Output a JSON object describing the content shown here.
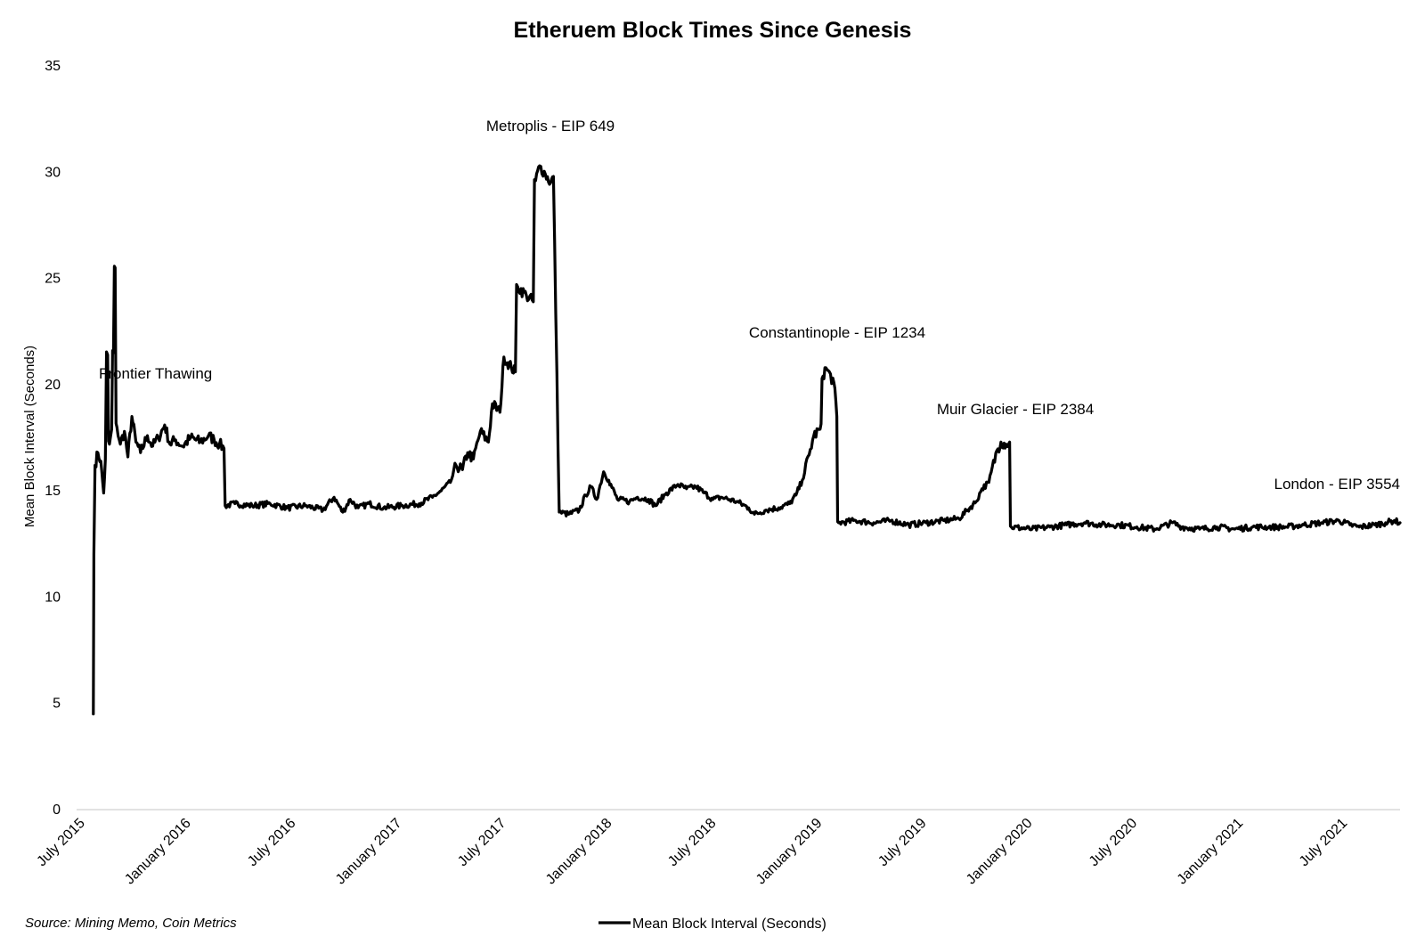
{
  "chart_data": {
    "type": "line",
    "title": "Etheruem Block Times Since Genesis",
    "ylabel": "Mean Block Interval (Seconds)",
    "xlabel": "",
    "ylim": [
      0,
      35
    ],
    "y_ticks": [
      0,
      5,
      10,
      15,
      20,
      25,
      30,
      35
    ],
    "x_range": [
      "2015-07-30",
      "2021-10-15"
    ],
    "x_ticks": [
      {
        "date": "2015-07-01",
        "label": "July 2015"
      },
      {
        "date": "2016-01-01",
        "label": "January 2016"
      },
      {
        "date": "2016-07-01",
        "label": "July 2016"
      },
      {
        "date": "2017-01-01",
        "label": "January 2017"
      },
      {
        "date": "2017-07-01",
        "label": "July 2017"
      },
      {
        "date": "2018-01-01",
        "label": "January 2018"
      },
      {
        "date": "2018-07-01",
        "label": "July 2018"
      },
      {
        "date": "2019-01-01",
        "label": "January 2019"
      },
      {
        "date": "2019-07-01",
        "label": "July 2019"
      },
      {
        "date": "2020-01-01",
        "label": "January 2020"
      },
      {
        "date": "2020-07-01",
        "label": "July 2020"
      },
      {
        "date": "2021-01-01",
        "label": "January 2021"
      },
      {
        "date": "2021-07-01",
        "label": "July 2021"
      }
    ],
    "grid": false,
    "legend_position": "bottom-center",
    "source": "Source: Mining Memo, Coin Metrics",
    "line_color": "#000000",
    "series": [
      {
        "name": "Mean Block Interval (Seconds)",
        "points": [
          [
            "2015-07-30",
            4.5
          ],
          [
            "2015-07-31",
            12.0
          ],
          [
            "2015-08-02",
            16.2
          ],
          [
            "2015-08-07",
            16.8
          ],
          [
            "2015-08-12",
            16.4
          ],
          [
            "2015-08-17",
            14.9
          ],
          [
            "2015-08-20",
            16.5
          ],
          [
            "2015-08-24",
            21.4
          ],
          [
            "2015-08-27",
            17.2
          ],
          [
            "2015-08-31",
            17.9
          ],
          [
            "2015-09-03",
            21.5
          ],
          [
            "2015-09-06",
            25.5
          ],
          [
            "2015-09-09",
            18.0
          ],
          [
            "2015-09-15",
            17.2
          ],
          [
            "2015-09-22",
            17.8
          ],
          [
            "2015-09-28",
            16.6
          ],
          [
            "2015-10-05",
            18.5
          ],
          [
            "2015-10-12",
            17.3
          ],
          [
            "2015-10-20",
            16.8
          ],
          [
            "2015-11-01",
            17.6
          ],
          [
            "2015-11-10",
            17.1
          ],
          [
            "2015-11-20",
            17.5
          ],
          [
            "2015-12-01",
            18.1
          ],
          [
            "2015-12-10",
            17.2
          ],
          [
            "2015-12-20",
            17.4
          ],
          [
            "2016-01-01",
            17.1
          ],
          [
            "2016-01-15",
            17.5
          ],
          [
            "2016-02-01",
            17.3
          ],
          [
            "2016-02-15",
            17.6
          ],
          [
            "2016-02-25",
            17.4
          ],
          [
            "2016-03-05",
            17.2
          ],
          [
            "2016-03-13",
            17.0
          ],
          [
            "2016-03-15",
            14.3
          ],
          [
            "2016-04-01",
            14.4
          ],
          [
            "2016-05-01",
            14.3
          ],
          [
            "2016-06-01",
            14.4
          ],
          [
            "2016-07-01",
            14.2
          ],
          [
            "2016-08-01",
            14.3
          ],
          [
            "2016-09-01",
            14.1
          ],
          [
            "2016-09-20",
            14.7
          ],
          [
            "2016-10-05",
            14.0
          ],
          [
            "2016-10-18",
            14.6
          ],
          [
            "2016-11-01",
            14.2
          ],
          [
            "2016-11-20",
            14.4
          ],
          [
            "2016-12-15",
            14.2
          ],
          [
            "2017-01-15",
            14.3
          ],
          [
            "2017-02-15",
            14.4
          ],
          [
            "2017-03-10",
            14.7
          ],
          [
            "2017-03-25",
            15.0
          ],
          [
            "2017-04-10",
            15.4
          ],
          [
            "2017-04-20",
            16.2
          ],
          [
            "2017-05-01",
            16.0
          ],
          [
            "2017-05-10",
            16.8
          ],
          [
            "2017-05-20",
            16.5
          ],
          [
            "2017-06-01",
            17.8
          ],
          [
            "2017-06-15",
            17.3
          ],
          [
            "2017-06-22",
            19.1
          ],
          [
            "2017-07-05",
            18.7
          ],
          [
            "2017-07-12",
            21.3
          ],
          [
            "2017-07-25",
            20.8
          ],
          [
            "2017-08-01",
            20.6
          ],
          [
            "2017-08-05",
            24.6
          ],
          [
            "2017-08-20",
            24.2
          ],
          [
            "2017-09-01",
            23.9
          ],
          [
            "2017-09-05",
            29.6
          ],
          [
            "2017-09-12",
            30.3
          ],
          [
            "2017-09-22",
            29.9
          ],
          [
            "2017-10-01",
            29.5
          ],
          [
            "2017-10-06",
            29.8
          ],
          [
            "2017-10-16",
            14.0
          ],
          [
            "2017-11-01",
            13.9
          ],
          [
            "2017-11-20",
            14.1
          ],
          [
            "2017-12-01",
            14.8
          ],
          [
            "2017-12-10",
            15.2
          ],
          [
            "2017-12-20",
            14.6
          ],
          [
            "2018-01-01",
            15.9
          ],
          [
            "2018-01-10",
            15.5
          ],
          [
            "2018-01-25",
            14.6
          ],
          [
            "2018-02-15",
            14.5
          ],
          [
            "2018-03-01",
            14.7
          ],
          [
            "2018-03-20",
            14.6
          ],
          [
            "2018-04-01",
            14.3
          ],
          [
            "2018-04-20",
            14.9
          ],
          [
            "2018-05-10",
            15.3
          ],
          [
            "2018-05-25",
            15.1
          ],
          [
            "2018-06-10",
            15.2
          ],
          [
            "2018-06-25",
            14.9
          ],
          [
            "2018-07-10",
            14.6
          ],
          [
            "2018-07-25",
            14.7
          ],
          [
            "2018-08-20",
            14.5
          ],
          [
            "2018-09-10",
            14.2
          ],
          [
            "2018-09-20",
            13.9
          ],
          [
            "2018-10-10",
            14.1
          ],
          [
            "2018-11-01",
            14.2
          ],
          [
            "2018-11-20",
            14.4
          ],
          [
            "2018-12-01",
            14.8
          ],
          [
            "2018-12-12",
            15.5
          ],
          [
            "2018-12-24",
            16.7
          ],
          [
            "2019-01-01",
            17.6
          ],
          [
            "2019-01-12",
            17.9
          ],
          [
            "2019-01-17",
            20.4
          ],
          [
            "2019-01-22",
            20.8
          ],
          [
            "2019-02-05",
            20.1
          ],
          [
            "2019-02-10",
            18.5
          ],
          [
            "2019-02-13",
            13.5
          ],
          [
            "2019-03-15",
            13.6
          ],
          [
            "2019-04-15",
            13.5
          ],
          [
            "2019-05-15",
            13.6
          ],
          [
            "2019-06-15",
            13.4
          ],
          [
            "2019-07-15",
            13.5
          ],
          [
            "2019-08-15",
            13.6
          ],
          [
            "2019-09-10",
            13.7
          ],
          [
            "2019-09-25",
            14.1
          ],
          [
            "2019-10-10",
            14.5
          ],
          [
            "2019-10-20",
            15.1
          ],
          [
            "2019-11-01",
            15.4
          ],
          [
            "2019-11-15",
            16.9
          ],
          [
            "2019-11-22",
            17.3
          ],
          [
            "2019-12-01",
            17.2
          ],
          [
            "2019-12-07",
            17.3
          ],
          [
            "2019-12-10",
            13.3
          ],
          [
            "2020-01-15",
            13.2
          ],
          [
            "2020-02-15",
            13.3
          ],
          [
            "2020-03-15",
            13.4
          ],
          [
            "2020-04-15",
            13.5
          ],
          [
            "2020-05-15",
            13.4
          ],
          [
            "2020-06-15",
            13.4
          ],
          [
            "2020-07-15",
            13.3
          ],
          [
            "2020-08-15",
            13.2
          ],
          [
            "2020-09-15",
            13.5
          ],
          [
            "2020-10-01",
            13.3
          ],
          [
            "2020-11-01",
            13.2
          ],
          [
            "2020-12-01",
            13.3
          ],
          [
            "2021-01-01",
            13.2
          ],
          [
            "2021-02-01",
            13.3
          ],
          [
            "2021-03-01",
            13.3
          ],
          [
            "2021-04-01",
            13.3
          ],
          [
            "2021-05-01",
            13.4
          ],
          [
            "2021-06-01",
            13.5
          ],
          [
            "2021-07-01",
            13.6
          ],
          [
            "2021-07-20",
            13.4
          ],
          [
            "2021-08-05",
            13.3
          ],
          [
            "2021-09-01",
            13.4
          ],
          [
            "2021-09-20",
            13.5
          ],
          [
            "2021-10-05",
            13.6
          ],
          [
            "2021-10-15",
            13.5
          ]
        ]
      }
    ],
    "annotations": [
      {
        "text": "Frontier Thawing"
      },
      {
        "text": "Metroplis - EIP 649"
      },
      {
        "text": "Constantinople - EIP 1234"
      },
      {
        "text": "Muir Glacier - EIP 2384"
      },
      {
        "text": "London - EIP 3554"
      }
    ]
  }
}
